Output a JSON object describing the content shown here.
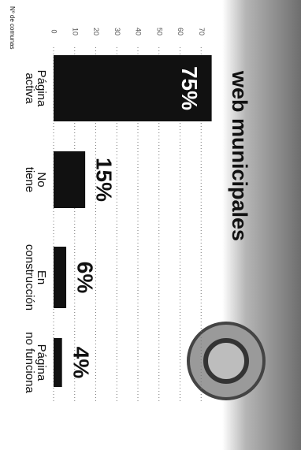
{
  "chart_data": {
    "type": "bar",
    "title": "web municipales",
    "y_label": "Nº de comunas",
    "categories": [
      "Página activa",
      "No tiene",
      "En construcción",
      "Página no funciona"
    ],
    "values": [
      75,
      15,
      6,
      4
    ],
    "value_labels": [
      "75%",
      "15%",
      "6%",
      "4%"
    ],
    "color": "#111111",
    "ylim": [
      0,
      80
    ],
    "yticks": [
      0,
      10,
      20,
      30,
      40,
      50,
      60,
      70
    ],
    "grid": true
  }
}
